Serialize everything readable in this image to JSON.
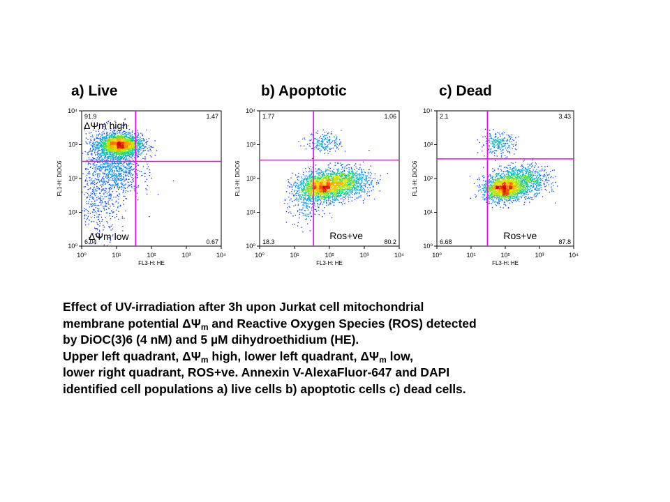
{
  "chart_data": [
    {
      "type": "scatter",
      "title": "a) Live",
      "xlabel": "FL3-H: HE",
      "ylabel": "FL1-H: DiOC6",
      "x_scale": "log",
      "y_scale": "log",
      "xlim": [
        1,
        10000
      ],
      "ylim": [
        1,
        10000
      ],
      "x_ticks": [
        "10⁰",
        "10¹",
        "10²",
        "10³",
        "10⁴"
      ],
      "y_ticks": [
        "10⁰",
        "10¹",
        "10²",
        "10³",
        "10⁴"
      ],
      "gate": {
        "x": 35,
        "y": 320
      },
      "quadrants": {
        "upper_left": "91.9",
        "upper_right": "1.47",
        "lower_left": "6.04",
        "lower_right": "0.67"
      },
      "annotations": {
        "upper": "ΔΨm high",
        "lower": "ΔΨm low"
      },
      "populations": [
        {
          "cx": 12,
          "cy": 1000,
          "sx_decades": 0.32,
          "sy_decades": 0.16,
          "n": 2200
        },
        {
          "cx": 8,
          "cy": 250,
          "sx_decades": 0.4,
          "sy_decades": 0.5,
          "n": 1200
        },
        {
          "cx": 3,
          "cy": 15,
          "sx_decades": 0.3,
          "sy_decades": 0.5,
          "n": 300
        }
      ],
      "grid": false,
      "legend": "none"
    },
    {
      "type": "scatter",
      "title": "b) Apoptotic",
      "xlabel": "FL3-H: HE",
      "ylabel": "FL1-H: DiOC6",
      "x_scale": "log",
      "y_scale": "log",
      "xlim": [
        1,
        10000
      ],
      "ylim": [
        1,
        10000
      ],
      "x_ticks": [
        "10⁰",
        "10¹",
        "10²",
        "10³",
        "10⁴"
      ],
      "y_ticks": [
        "10⁰",
        "10¹",
        "10²",
        "10³",
        "10⁴"
      ],
      "gate": {
        "x": 35,
        "y": 350
      },
      "quadrants": {
        "upper_left": "1.77",
        "upper_right": "1.06",
        "lower_left": "18.3",
        "lower_right": "80.2"
      },
      "annotations": {
        "lower_right": "Ros+ve"
      },
      "populations": [
        {
          "cx": 60,
          "cy": 55,
          "sx_decades": 0.32,
          "sy_decades": 0.2,
          "n": 1500
        },
        {
          "cx": 250,
          "cy": 80,
          "sx_decades": 0.38,
          "sy_decades": 0.22,
          "n": 1100
        },
        {
          "cx": 70,
          "cy": 1200,
          "sx_decades": 0.25,
          "sy_decades": 0.15,
          "n": 200
        },
        {
          "cx": 20,
          "cy": 25,
          "sx_decades": 0.25,
          "sy_decades": 0.4,
          "n": 300
        }
      ],
      "grid": false,
      "legend": "none"
    },
    {
      "type": "scatter",
      "title": "c) Dead",
      "xlabel": "FL3-H: HE",
      "ylabel": "FL1-H: DiOC6",
      "x_scale": "log",
      "y_scale": "log",
      "xlim": [
        1,
        10000
      ],
      "ylim": [
        1,
        10000
      ],
      "x_ticks": [
        "10⁰",
        "10¹",
        "10²",
        "10³",
        "10⁴"
      ],
      "y_ticks": [
        "10⁰",
        "10¹",
        "10²",
        "10³",
        "10⁴"
      ],
      "gate": {
        "x": 30,
        "y": 380
      },
      "quadrants": {
        "upper_left": "2.1",
        "upper_right": "3.43",
        "lower_left": "6.68",
        "lower_right": "87.8"
      },
      "annotations": {
        "lower_right": "Ros+ve"
      },
      "populations": [
        {
          "cx": 80,
          "cy": 50,
          "sx_decades": 0.28,
          "sy_decades": 0.18,
          "n": 1500
        },
        {
          "cx": 300,
          "cy": 90,
          "sx_decades": 0.38,
          "sy_decades": 0.22,
          "n": 1000
        },
        {
          "cx": 60,
          "cy": 1100,
          "sx_decades": 0.25,
          "sy_decades": 0.15,
          "n": 250
        }
      ],
      "grid": false,
      "legend": "none"
    }
  ],
  "caption": {
    "line1": "Effect of UV-irradiation after 3h upon Jurkat cell mitochondrial",
    "line2_a": "membrane potential ΔΨ",
    "line2_sub": "m",
    "line2_b": " and Reactive Oxygen Species (ROS) detected",
    "line3": "by DiOC(3)6 (4 nM) and 5 µM dihydroethidium (HE).",
    "line4_a": "Upper left quadrant, ΔΨ",
    "line4_sub1": "m",
    "line4_b": " high, lower left quadrant, ΔΨ",
    "line4_sub2": "m",
    "line4_c": " low,",
    "line5": "lower right quadrant, ROS+ve. Annexin V-AlexaFluor-647 and DAPI",
    "line6": "identified cell populations a) live cells b) apoptotic cells c) dead cells."
  },
  "colors": {
    "gate": "#ff00ff",
    "density_low": "#0000ff",
    "density_high": "#cc0000"
  }
}
